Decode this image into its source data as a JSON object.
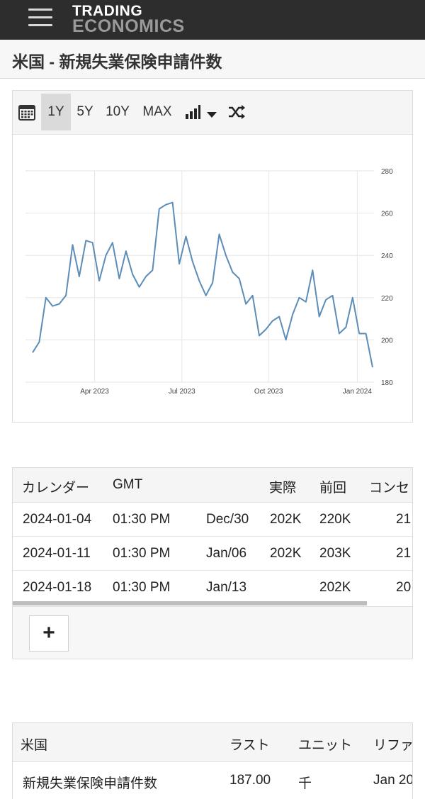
{
  "header": {
    "logo_line1": "TRADING",
    "logo_line2": "ECONOMICS",
    "menu_icon": "hamburger-menu-icon"
  },
  "page": {
    "title": "米国 - 新規失業保険申請件数"
  },
  "chart_toolbar": {
    "calendar_icon": "calendar-icon",
    "ranges": [
      "1Y",
      "5Y",
      "10Y",
      "MAX"
    ],
    "active_range": "1Y",
    "chart_type_icon": "bar-chart-icon",
    "dropdown_icon": "caret-down-icon",
    "compare_icon": "shuffle-icon"
  },
  "chart_data": {
    "type": "line",
    "title": "",
    "xlabel": "",
    "ylabel": "",
    "ylim": [
      180,
      280
    ],
    "yticks": [
      180,
      200,
      220,
      240,
      260,
      280
    ],
    "xtick_labels": [
      "Apr 2023",
      "Jul 2023",
      "Oct 2023",
      "Jan 2024"
    ],
    "xtick_index": [
      9.3,
      22.4,
      35.4,
      48.7
    ],
    "series": [
      {
        "name": "新規失業保険申請件数",
        "color": "#5b8db8",
        "values": [
          194,
          199,
          220,
          216,
          217,
          221,
          245,
          230,
          247,
          246,
          228,
          240,
          246,
          229,
          242,
          231,
          225,
          230,
          233,
          262,
          264,
          265,
          236,
          249,
          237,
          228,
          221,
          227,
          250,
          240,
          232,
          229,
          217,
          221,
          202,
          205,
          209,
          211,
          200,
          212,
          220,
          218,
          233,
          211,
          219,
          221,
          203,
          206,
          220,
          203,
          203,
          187
        ]
      }
    ]
  },
  "calendar": {
    "headers": [
      "カレンダー",
      "GMT",
      "",
      "実際",
      "前回",
      "コンセ"
    ],
    "rows": [
      [
        "2024-01-04",
        "01:30 PM",
        "Dec/30",
        "202K",
        "220K",
        "21"
      ],
      [
        "2024-01-11",
        "01:30 PM",
        "Jan/06",
        "202K",
        "203K",
        "21"
      ],
      [
        "2024-01-18",
        "01:30 PM",
        "Jan/13",
        "",
        "202K",
        "20"
      ]
    ],
    "add_button": "+"
  },
  "summary": {
    "headers": [
      "米国",
      "ラスト",
      "ユニット",
      "リファ"
    ],
    "rows": [
      [
        "新規失業保険申請件数",
        "187.00",
        "千",
        "Jan 20"
      ]
    ]
  }
}
